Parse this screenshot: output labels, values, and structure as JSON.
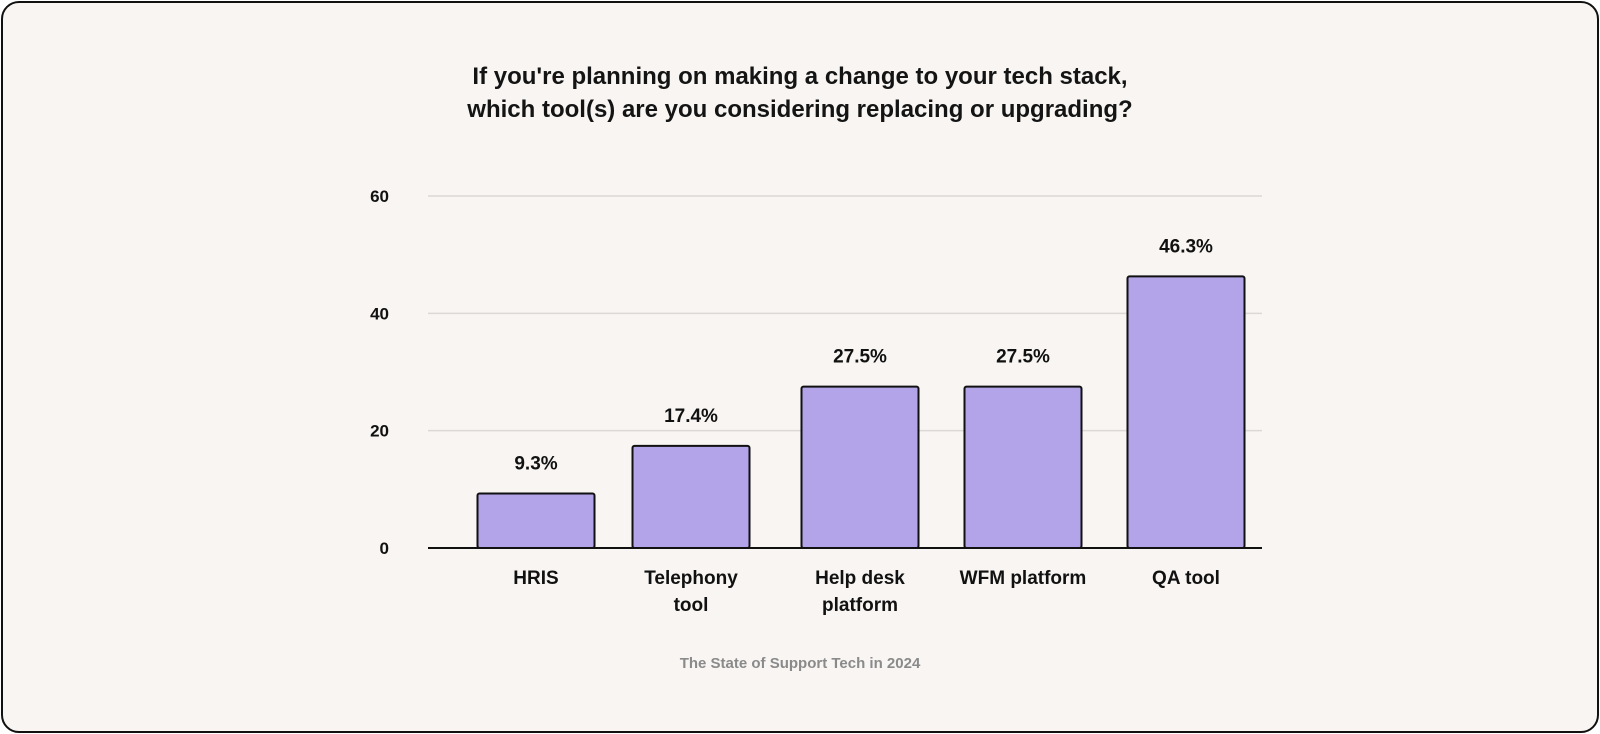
{
  "chart_data": {
    "type": "bar",
    "title_lines": [
      "If you're planning on making a change to your tech stack,",
      "which tool(s) are you considering replacing or upgrading?"
    ],
    "categories": [
      [
        "HRIS"
      ],
      [
        "Telephony",
        "tool"
      ],
      [
        "Help desk",
        "platform"
      ],
      [
        "WFM platform"
      ],
      [
        "QA tool"
      ]
    ],
    "values": [
      9.3,
      17.4,
      27.5,
      27.5,
      46.3
    ],
    "data_labels": [
      "9.3%",
      "17.4%",
      "27.5%",
      "27.5%",
      "46.3%"
    ],
    "ylim": [
      0,
      60
    ],
    "yticks": [
      0,
      20,
      40,
      60
    ],
    "grid": true,
    "bar_color": "#b3a4ea",
    "bar_outline": "#111111",
    "source": "The State of Support Tech in 2024"
  }
}
